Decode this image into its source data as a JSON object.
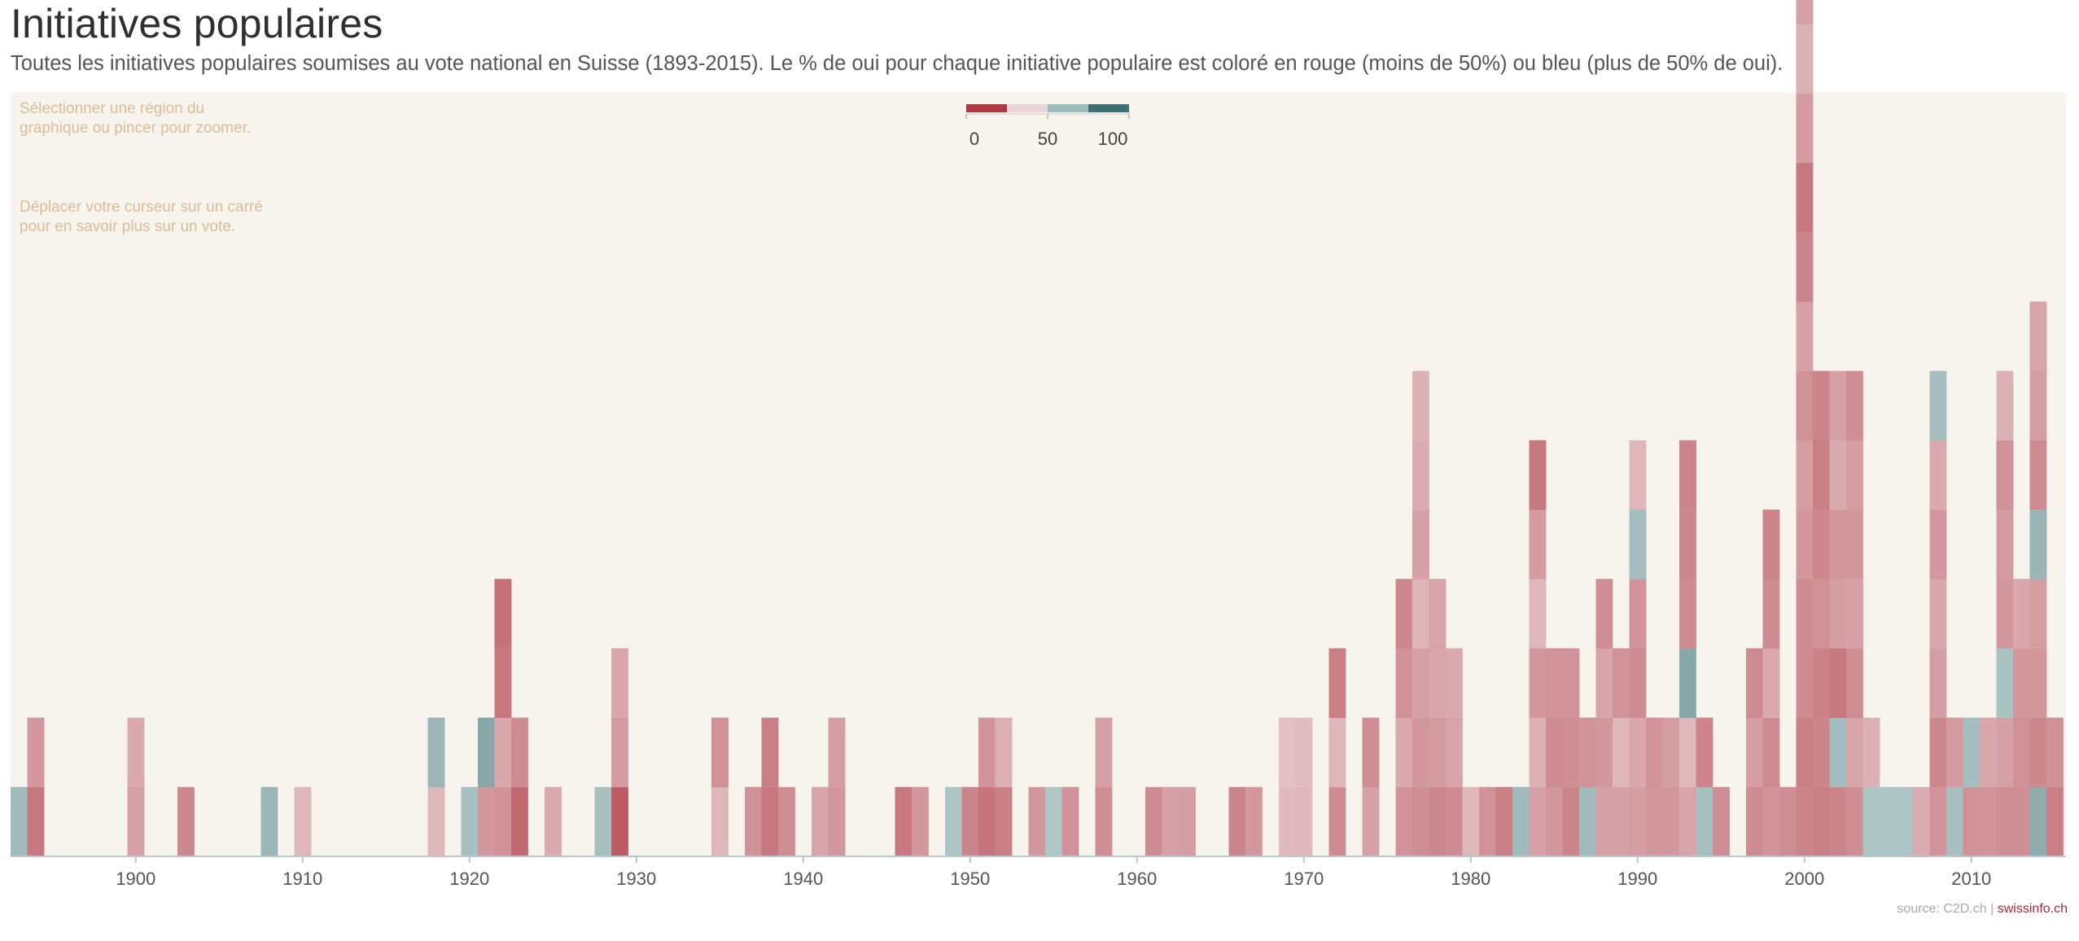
{
  "title": "Initiatives populaires",
  "subtitle": "Toutes les initiatives populaires soumises au vote national en Suisse (1893-2015). Le % de oui pour chaque initiative populaire est coloré en rouge (moins de 50%) ou bleu (plus de 50% de oui).",
  "hints": [
    "Sélectionner une région du graphique ou pincer pour zoomer.",
    "Déplacer votre curseur sur un carré pour en savoir plus sur un vote."
  ],
  "source": {
    "text": "source: C2D.ch",
    "separator": "|",
    "brand": "swissinfo.ch"
  },
  "legend": {
    "ticks": [
      0,
      50,
      100
    ],
    "colors": [
      "#b03a44",
      "#ead6d8",
      "#9fbcbd",
      "#3f6f73"
    ]
  },
  "colors": {
    "red_strong": "#b03a44",
    "red_light": "#ead6d8",
    "blue_light": "#b9cdcd",
    "blue_strong": "#3f6f73",
    "background": "#f7f4ee",
    "brand": "#a6293a"
  },
  "chart_data": {
    "type": "heatmap",
    "description_encoding": "Each square is one popular initiative, stacked by year; value = % yes",
    "x_range": [
      1893,
      2015
    ],
    "x_ticks": [
      1900,
      1910,
      1920,
      1930,
      1940,
      1950,
      1960,
      1970,
      1980,
      1990,
      2000,
      2010
    ],
    "value_range": [
      0,
      100
    ],
    "years": [
      {
        "year": 1893,
        "yes": [
          60
        ]
      },
      {
        "year": 1894,
        "yes": [
          20,
          30
        ]
      },
      {
        "year": 1900,
        "yes": [
          33,
          36
        ]
      },
      {
        "year": 1903,
        "yes": [
          25
        ]
      },
      {
        "year": 1908,
        "yes": [
          62
        ]
      },
      {
        "year": 1910,
        "yes": [
          40
        ]
      },
      {
        "year": 1918,
        "yes": [
          40,
          62
        ]
      },
      {
        "year": 1920,
        "yes": [
          57
        ]
      },
      {
        "year": 1921,
        "yes": [
          30,
          70
        ]
      },
      {
        "year": 1922,
        "yes": [
          28,
          35,
          20,
          18
        ]
      },
      {
        "year": 1923,
        "yes": [
          15,
          26
        ]
      },
      {
        "year": 1925,
        "yes": [
          36
        ]
      },
      {
        "year": 1928,
        "yes": [
          57
        ]
      },
      {
        "year": 1929,
        "yes": [
          10,
          31,
          35
        ]
      },
      {
        "year": 1935,
        "yes": [
          40,
          28
        ]
      },
      {
        "year": 1937,
        "yes": [
          28
        ]
      },
      {
        "year": 1938,
        "yes": [
          20,
          22
        ]
      },
      {
        "year": 1939,
        "yes": [
          27
        ]
      },
      {
        "year": 1941,
        "yes": [
          34
        ]
      },
      {
        "year": 1942,
        "yes": [
          30,
          32
        ]
      },
      {
        "year": 1946,
        "yes": [
          20
        ]
      },
      {
        "year": 1947,
        "yes": [
          30
        ]
      },
      {
        "year": 1949,
        "yes": [
          55
        ]
      },
      {
        "year": 1950,
        "yes": [
          24
        ]
      },
      {
        "year": 1951,
        "yes": [
          19,
          29
        ]
      },
      {
        "year": 1952,
        "yes": [
          22,
          38
        ]
      },
      {
        "year": 1954,
        "yes": [
          30
        ]
      },
      {
        "year": 1955,
        "yes": [
          54
        ]
      },
      {
        "year": 1956,
        "yes": [
          28
        ]
      },
      {
        "year": 1958,
        "yes": [
          27,
          33
        ]
      },
      {
        "year": 1961,
        "yes": [
          26
        ]
      },
      {
        "year": 1962,
        "yes": [
          33
        ]
      },
      {
        "year": 1963,
        "yes": [
          32
        ]
      },
      {
        "year": 1966,
        "yes": [
          24
        ]
      },
      {
        "year": 1967,
        "yes": [
          30
        ]
      },
      {
        "year": 1969,
        "yes": [
          41,
          43
        ]
      },
      {
        "year": 1970,
        "yes": [
          40,
          42
        ]
      },
      {
        "year": 1972,
        "yes": [
          26,
          40,
          22
        ]
      },
      {
        "year": 1974,
        "yes": [
          33,
          27
        ]
      },
      {
        "year": 1976,
        "yes": [
          29,
          36,
          28,
          25
        ]
      },
      {
        "year": 1977,
        "yes": [
          27,
          30,
          33,
          39,
          33,
          37,
          38
        ]
      },
      {
        "year": 1978,
        "yes": [
          25,
          31,
          35,
          34
        ]
      },
      {
        "year": 1979,
        "yes": [
          26,
          34,
          36
        ]
      },
      {
        "year": 1980,
        "yes": [
          40
        ]
      },
      {
        "year": 1981,
        "yes": [
          28
        ]
      },
      {
        "year": 1982,
        "yes": [
          22
        ]
      },
      {
        "year": 1983,
        "yes": [
          60
        ]
      },
      {
        "year": 1984,
        "yes": [
          33,
          38,
          30,
          40,
          31,
          20
        ]
      },
      {
        "year": 1985,
        "yes": [
          30,
          26,
          29
        ]
      },
      {
        "year": 1986,
        "yes": [
          24,
          27,
          29
        ]
      },
      {
        "year": 1987,
        "yes": [
          60,
          29
        ]
      },
      {
        "year": 1988,
        "yes": [
          33,
          30,
          34,
          27
        ]
      },
      {
        "year": 1989,
        "yes": [
          33,
          40,
          29
        ]
      },
      {
        "year": 1990,
        "yes": [
          32,
          35,
          26,
          29,
          58,
          40
        ]
      },
      {
        "year": 1991,
        "yes": [
          30,
          29
        ]
      },
      {
        "year": 1992,
        "yes": [
          30,
          32
        ]
      },
      {
        "year": 1993,
        "yes": [
          34,
          41,
          70,
          26,
          25,
          24
        ]
      },
      {
        "year": 1994,
        "yes": [
          57,
          24
        ]
      },
      {
        "year": 1995,
        "yes": [
          27
        ]
      },
      {
        "year": 1997,
        "yes": [
          26,
          32,
          26
        ]
      },
      {
        "year": 1998,
        "yes": [
          29,
          26,
          36,
          26,
          24
        ]
      },
      {
        "year": 1999,
        "yes": [
          27
        ]
      },
      {
        "year": 2000,
        "yes": [
          24,
          22,
          26,
          26,
          30,
          32,
          28,
          33,
          24,
          20,
          31,
          38,
          33
        ]
      },
      {
        "year": 2001,
        "yes": [
          22,
          24,
          23,
          28,
          25,
          22,
          24
        ]
      },
      {
        "year": 2002,
        "yes": [
          24,
          59,
          20,
          32,
          30,
          36,
          33
        ]
      },
      {
        "year": 2003,
        "yes": [
          27,
          34,
          27,
          33,
          30,
          32,
          27
        ]
      },
      {
        "year": 2004,
        "yes": [
          55,
          38
        ]
      },
      {
        "year": 2005,
        "yes": [
          55
        ]
      },
      {
        "year": 2006,
        "yes": [
          55
        ]
      },
      {
        "year": 2007,
        "yes": [
          37
        ]
      },
      {
        "year": 2008,
        "yes": [
          29,
          25,
          32,
          35,
          30,
          36,
          58
        ]
      },
      {
        "year": 2009,
        "yes": [
          57,
          31
        ]
      },
      {
        "year": 2010,
        "yes": [
          28,
          58
        ]
      },
      {
        "year": 2011,
        "yes": [
          29,
          35
        ]
      },
      {
        "year": 2012,
        "yes": [
          27,
          33,
          56,
          30,
          31,
          28,
          38
        ]
      },
      {
        "year": 2013,
        "yes": [
          27,
          28,
          30,
          35
        ]
      },
      {
        "year": 2014,
        "yes": [
          67,
          25,
          30,
          32,
          63,
          26,
          32,
          34
        ]
      },
      {
        "year": 2015,
        "yes": [
          22,
          28
        ]
      }
    ]
  }
}
